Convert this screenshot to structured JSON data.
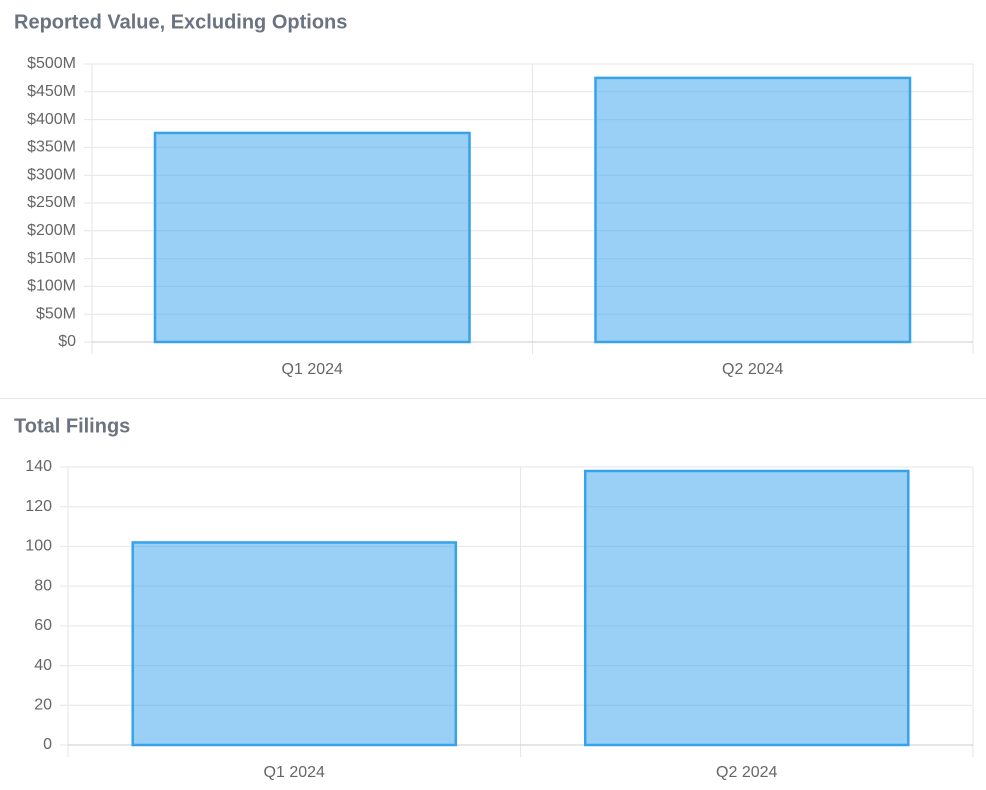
{
  "chart_data": [
    {
      "type": "bar",
      "title": "Reported Value, Excluding Options",
      "categories": [
        "Q1 2024",
        "Q2 2024"
      ],
      "values": [
        376000000,
        475000000
      ],
      "color": "#36a2eb",
      "ylim": [
        0,
        500000000
      ],
      "yticks": [
        {
          "value": 0,
          "label": "$0"
        },
        {
          "value": 50000000,
          "label": "$50M"
        },
        {
          "value": 100000000,
          "label": "$100M"
        },
        {
          "value": 150000000,
          "label": "$150M"
        },
        {
          "value": 200000000,
          "label": "$200M"
        },
        {
          "value": 250000000,
          "label": "$250M"
        },
        {
          "value": 300000000,
          "label": "$300M"
        },
        {
          "value": 350000000,
          "label": "$350M"
        },
        {
          "value": 400000000,
          "label": "$400M"
        },
        {
          "value": 450000000,
          "label": "$450M"
        },
        {
          "value": 500000000,
          "label": "$500M"
        }
      ],
      "grid": true
    },
    {
      "type": "bar",
      "title": "Total Filings",
      "categories": [
        "Q1 2024",
        "Q2 2024"
      ],
      "values": [
        102,
        138
      ],
      "color": "#36a2eb",
      "ylim": [
        0,
        140
      ],
      "yticks": [
        0,
        20,
        40,
        60,
        80,
        100,
        120,
        140
      ],
      "grid": true
    }
  ]
}
